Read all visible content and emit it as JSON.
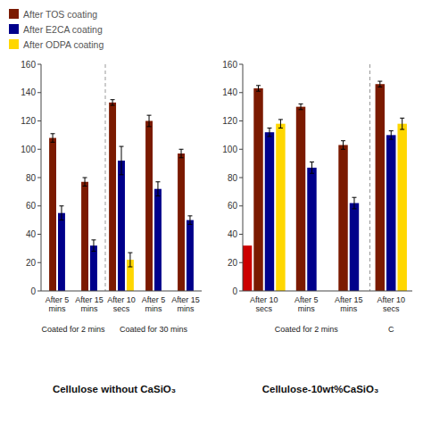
{
  "chart_data": [
    {
      "type": "bar",
      "title": "Cellulose without CaSiO₃",
      "categories": [
        "After 5\nmins",
        "After 15\nmins",
        "After 10\nsecs",
        "After 5\nmins",
        "After 15\nmins"
      ],
      "category_groups": [
        {
          "label": "Coated for 2 mins",
          "count": 2
        },
        {
          "label": "Coated for 30 mins",
          "count": 3
        }
      ],
      "series": [
        {
          "name": "After TOS coating",
          "color": "#7B1A00",
          "values": [
            108,
            77,
            133,
            120,
            97
          ],
          "errors": [
            3,
            3,
            2,
            4,
            3
          ]
        },
        {
          "name": "After E2CA coating",
          "color": "#00008B",
          "values": [
            55,
            32,
            92,
            72,
            50
          ],
          "errors": [
            5,
            4,
            10,
            5,
            3
          ]
        },
        {
          "name": "After ODPA coating",
          "color": "#FFD700",
          "values": [
            null,
            null,
            22,
            null,
            null
          ],
          "errors": [
            null,
            null,
            5,
            null,
            null
          ]
        }
      ],
      "ylim": [
        0,
        160
      ],
      "yticks": [
        0,
        20,
        40,
        60,
        80,
        100,
        120,
        140,
        160
      ],
      "grid": false,
      "legend": "upper left"
    },
    {
      "type": "bar",
      "title": "Cellulose-10wt%CaSiO₃",
      "categories": [
        "After 10\nsecs",
        "After 5\nmins",
        "After 15\nmins",
        "After 10\nsecs"
      ],
      "category_groups": [
        {
          "label": "Coated for 2 mins",
          "count": 3
        },
        {
          "label": "C",
          "count": 1
        }
      ],
      "series": [
        {
          "color": "#CC0000",
          "values": [
            32,
            null,
            null,
            null
          ]
        },
        {
          "name": "After TOS coating",
          "color": "#7B1A00",
          "values": [
            143,
            130,
            103,
            146
          ],
          "errors": [
            2,
            2,
            3,
            2
          ]
        },
        {
          "name": "After E2CA coating",
          "color": "#00008B",
          "values": [
            112,
            87,
            62,
            110
          ],
          "errors": [
            3,
            4,
            4,
            3
          ]
        },
        {
          "name": "After ODPA coating",
          "color": "#FFD700",
          "values": [
            118,
            null,
            null,
            118
          ],
          "errors": [
            3,
            null,
            null,
            4
          ]
        }
      ],
      "ylim": [
        0,
        160
      ],
      "yticks": [
        0,
        20,
        40,
        60,
        80,
        100,
        120,
        140,
        160
      ],
      "grid": false
    }
  ]
}
